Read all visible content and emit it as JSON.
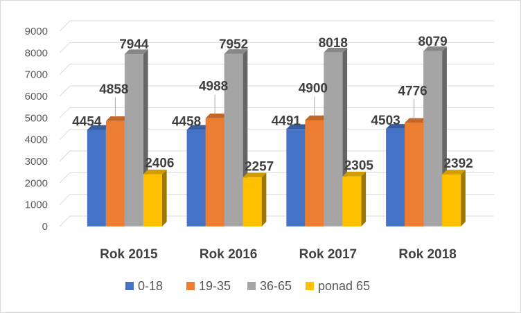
{
  "chart_data": {
    "type": "bar",
    "title": "",
    "xlabel": "",
    "ylabel": "",
    "categories": [
      "Rok 2015",
      "Rok 2016",
      "Rok 2017",
      "Rok 2018"
    ],
    "series": [
      {
        "name": "0-18",
        "color": "#4472c4",
        "values": [
          4454,
          4458,
          4491,
          4503
        ]
      },
      {
        "name": "19-35",
        "color": "#ed7d31",
        "values": [
          4858,
          4988,
          4900,
          4776
        ]
      },
      {
        "name": "36-65",
        "color": "#a5a5a5",
        "values": [
          7944,
          7952,
          8018,
          8079
        ]
      },
      {
        "name": "ponad 65",
        "color": "#ffc000",
        "values": [
          2406,
          2257,
          2305,
          2392
        ]
      }
    ],
    "yticks": [
      "0",
      "1000",
      "2000",
      "3000",
      "4000",
      "5000",
      "6000",
      "7000",
      "8000",
      "9000"
    ],
    "ylim": [
      0,
      9000
    ],
    "grid": true,
    "legend": "bottom",
    "style": "3d-clustered-column"
  }
}
